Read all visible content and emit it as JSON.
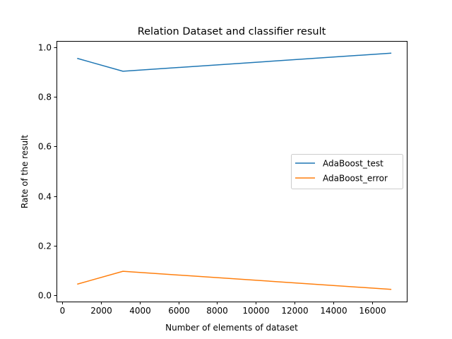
{
  "chart_data": {
    "type": "line",
    "title": "Relation Dataset and classifier result",
    "xlabel": "Number of elements of dataset",
    "ylabel": "Rate of the result",
    "xlim": [
      -300,
      17800
    ],
    "ylim": [
      -0.025,
      1.025
    ],
    "xticks": [
      0,
      2000,
      4000,
      6000,
      8000,
      10000,
      12000,
      14000,
      16000
    ],
    "xtick_labels": [
      "0",
      "2000",
      "4000",
      "6000",
      "8000",
      "10000",
      "12000",
      "14000",
      "16000"
    ],
    "yticks": [
      0.0,
      0.2,
      0.4,
      0.6,
      0.8,
      1.0
    ],
    "ytick_labels": [
      "0.0",
      "0.2",
      "0.4",
      "0.6",
      "0.8",
      "1.0"
    ],
    "grid": false,
    "legend_position": "center-right",
    "series": [
      {
        "name": "AdaBoost_test",
        "color": "#1f77b4",
        "x": [
          768,
          3133,
          17000
        ],
        "y": [
          0.955,
          0.903,
          0.976
        ]
      },
      {
        "name": "AdaBoost_error",
        "color": "#ff7f0e",
        "x": [
          768,
          3133,
          17000
        ],
        "y": [
          0.045,
          0.097,
          0.024
        ]
      }
    ]
  }
}
